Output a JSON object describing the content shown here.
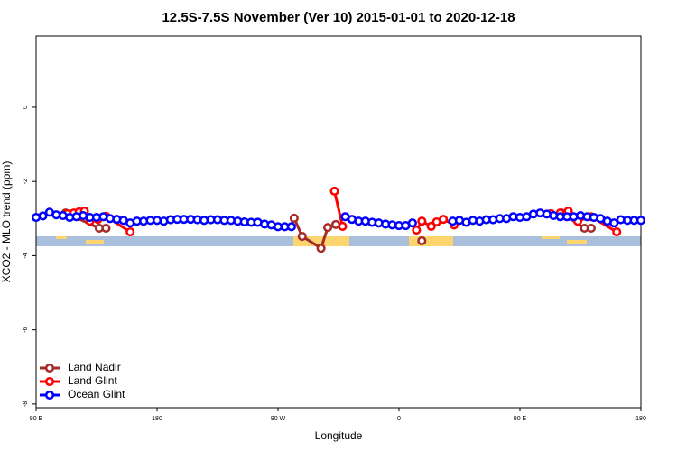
{
  "chart_data": {
    "type": "line",
    "title": "12.5S-7.5S November (Ver 10)   2015-01-01 to 2020-12-18",
    "x_label": "Longitude",
    "y_label": "XCO2 - MLO trend (ppm)",
    "xlim": [
      90,
      540
    ],
    "ylim": [
      -8.1,
      1.92
    ],
    "xticks": [
      {
        "value": 90,
        "label": "90 E"
      },
      180,
      {
        "value": 270,
        "label": "90 W"
      },
      {
        "value": 360,
        "label": "0"
      },
      {
        "value": 450,
        "label": "90 E"
      },
      {
        "value": 540,
        "label": "180"
      }
    ],
    "yticks": [
      0,
      -2,
      -4,
      -6,
      -8
    ],
    "legend": "bottom-left",
    "series": [
      {
        "name": "Land Nadir",
        "color": "#a52a2a",
        "x": [
          112,
          137,
          142,
          null,
          282,
          288,
          302,
          307,
          313,
          null,
          377,
          null,
          481,
          498,
          503
        ],
        "values": [
          -2.85,
          -3.26,
          -3.26,
          null,
          -2.99,
          -3.48,
          -3.8,
          -3.24,
          -3.16,
          null,
          -3.6,
          null,
          -2.85,
          -3.26,
          -3.26
        ]
      },
      {
        "name": "Land Glint",
        "color": "#ff0000",
        "x": [
          113,
          118,
          122,
          126,
          130,
          136,
          142,
          160,
          null,
          312,
          318,
          null,
          373,
          377,
          384,
          388,
          393,
          401,
          null,
          473,
          480,
          486,
          493,
          503,
          522
        ],
        "values": [
          -2.87,
          -2.85,
          -2.82,
          -2.8,
          -3.07,
          -3.02,
          -2.94,
          -3.36,
          null,
          -2.26,
          -3.21,
          null,
          -3.31,
          -3.07,
          -3.21,
          -3.09,
          -3.02,
          -3.17,
          null,
          -2.87,
          -2.85,
          -2.8,
          -3.07,
          -2.95,
          -3.36
        ]
      },
      {
        "name": "Ocean Glint",
        "color": "#0000ff",
        "x": [
          90,
          95,
          100,
          105,
          110,
          115,
          120,
          125,
          130,
          135,
          140,
          145,
          150,
          155,
          160,
          165,
          170,
          175,
          180,
          185,
          190,
          195,
          200,
          205,
          210,
          215,
          220,
          225,
          230,
          235,
          240,
          245,
          250,
          255,
          260,
          265,
          270,
          275,
          280,
          285,
          290,
          295,
          300,
          305,
          310,
          315,
          320,
          325,
          330,
          335,
          340,
          345,
          350,
          355,
          360,
          365,
          370,
          375,
          380,
          385,
          390,
          395,
          400,
          405,
          410,
          415,
          420,
          425,
          430,
          435,
          440,
          445,
          450,
          455,
          460,
          465,
          470,
          475,
          480,
          485,
          490,
          495,
          500,
          505,
          510,
          515,
          520,
          525,
          530,
          535,
          540
        ],
        "values": [
          -2.97,
          -2.93,
          -2.83,
          -2.9,
          -2.92,
          -2.97,
          -2.95,
          -2.92,
          -2.97,
          -2.97,
          -2.95,
          -3.0,
          -3.02,
          -3.05,
          -3.12,
          -3.07,
          -3.07,
          -3.05,
          -3.05,
          -3.07,
          -3.03,
          -3.02,
          -3.02,
          -3.02,
          -3.03,
          -3.05,
          -3.03,
          -3.03,
          -3.05,
          -3.05,
          -3.07,
          -3.09,
          -3.1,
          -3.1,
          -3.15,
          -3.17,
          -3.22,
          -3.22,
          -3.22,
          null,
          null,
          null,
          null,
          null,
          null,
          null,
          -2.95,
          -3.02,
          -3.07,
          -3.07,
          -3.1,
          -3.12,
          -3.15,
          -3.17,
          -3.19,
          -3.19,
          -3.12,
          null,
          null,
          null,
          null,
          null,
          -3.07,
          -3.05,
          -3.1,
          -3.05,
          -3.07,
          -3.03,
          -3.03,
          -3.0,
          -3.0,
          -2.95,
          -2.97,
          -2.95,
          -2.88,
          -2.85,
          -2.88,
          -2.92,
          -2.95,
          -2.95,
          -2.95,
          -2.92,
          -2.95,
          -2.97,
          -3.0,
          -3.07,
          -3.12,
          -3.03,
          -3.05,
          -3.05,
          -3.05
        ]
      }
    ]
  }
}
